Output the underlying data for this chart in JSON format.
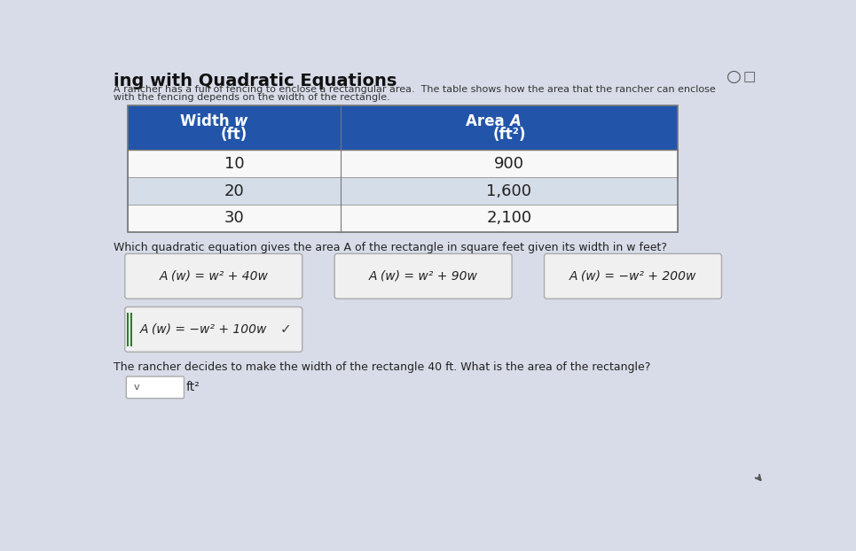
{
  "title": "ing with Quadratic Equations",
  "subtitle_line1": "A rancher has a full of fencing to enclose a rectangular area.  The table shows how the area that the rancher can enclose",
  "subtitle_line2": "with the fencing depends on the width of the rectangle.",
  "table_data": [
    [
      "10",
      "900"
    ],
    [
      "20",
      "1,600"
    ],
    [
      "30",
      "2,100"
    ]
  ],
  "question1": "Which quadratic equation gives the area A of the rectangle in square feet given its width in w feet?",
  "options": [
    "A (w) = w² + 40w",
    "A (w) = w² + 90w",
    "A (w) = −w² + 200w",
    "A (w) = −w² + 100w"
  ],
  "question2": "The rancher decides to make the width of the rectangle 40 ft. What is the area of the rectangle?",
  "answer_suffix": "ft²",
  "header_bg": "#2255aa",
  "header_fg": "#ffffff",
  "row_bg_white": "#f8f8f8",
  "row_bg_blue": "#d5dde8",
  "table_border": "#999999",
  "option_border": "#aaaaaa",
  "option_bg": "#f0f0f0",
  "correct_border_color": "#2d7a2d",
  "bg_color": "#d8dce8",
  "icon_color": "#555555"
}
